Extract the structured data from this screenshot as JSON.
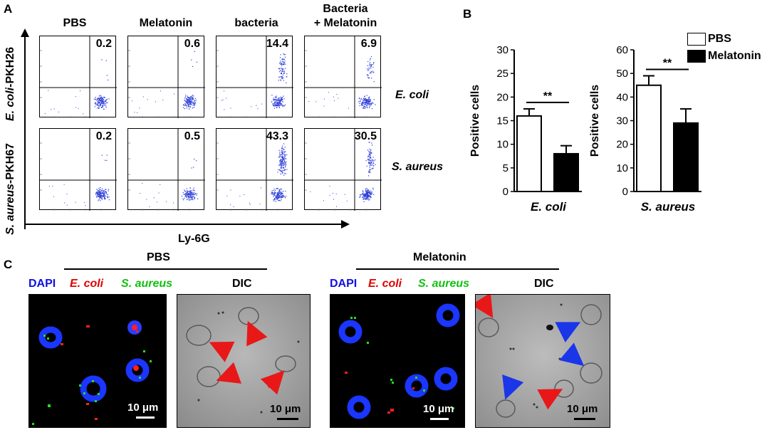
{
  "panel_a": {
    "letter": "A",
    "columns": [
      "PBS",
      "Melatonin",
      "bacteria",
      "Bacteria",
      "+ Melatonin"
    ],
    "row_labels": {
      "ecoli_italic": "E. coli",
      "ecoli_rest": "-PKH26",
      "saureus_italic": "S. aureus",
      "saureus_rest": "-PKH67"
    },
    "xaxis_label": "Ly-6G",
    "side_labels": [
      "E. coli",
      "S. aureus"
    ],
    "values_row1": [
      "0.2",
      "0.6",
      "14.4",
      "6.9"
    ],
    "values_row2": [
      "0.2",
      "0.5",
      "43.3",
      "30.5"
    ]
  },
  "panel_b": {
    "letter": "B",
    "legend": [
      "PBS",
      "Melatonin"
    ],
    "significance": "**",
    "colors": {
      "pbs": "#ffffff",
      "melatonin": "#000000"
    }
  },
  "chart_data": [
    {
      "type": "bar",
      "xlabel": "E. coli",
      "ylabel": "Positive cells",
      "ylim": [
        0,
        30
      ],
      "yticks": [
        "0",
        "5",
        "10",
        "15",
        "20",
        "25",
        "30"
      ],
      "series": [
        {
          "name": "PBS",
          "values": [
            16
          ],
          "error": [
            1.5
          ]
        },
        {
          "name": "Melatonin",
          "values": [
            8
          ],
          "error": [
            1.7
          ]
        }
      ],
      "annotation": "**"
    },
    {
      "type": "bar",
      "xlabel": "S. aureus",
      "ylabel": "Positive cells",
      "ylim": [
        0,
        60
      ],
      "yticks": [
        "0",
        "10",
        "20",
        "30",
        "40",
        "50",
        "60"
      ],
      "series": [
        {
          "name": "PBS",
          "values": [
            45
          ],
          "error": [
            4
          ]
        },
        {
          "name": "Melatonin",
          "values": [
            29
          ],
          "error": [
            6
          ]
        }
      ],
      "annotation": "**"
    }
  ],
  "panel_c": {
    "letter": "C",
    "group_pbs": "PBS",
    "group_mel": "Melatonin",
    "stain_dapi": "DAPI",
    "stain_ecoli": "E. coli",
    "stain_saureus": "S. aureus",
    "stain_dic": "DIC",
    "scale": "10 μm",
    "colors": {
      "dapi": "#1010e0",
      "ecoli": "#e00000",
      "saureus": "#10c010",
      "red_arrow": "#e81818",
      "blue_arrow": "#1a36e8"
    }
  }
}
